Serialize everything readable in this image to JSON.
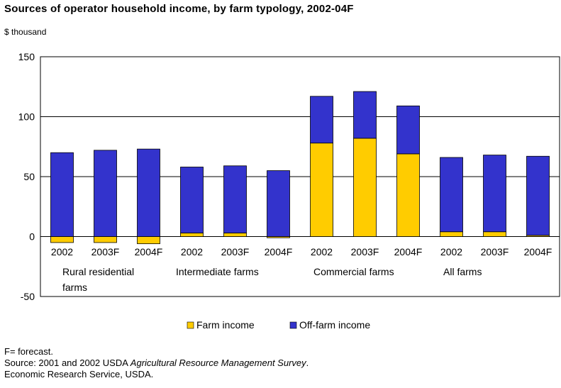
{
  "chart_data": {
    "type": "bar",
    "stacked": true,
    "title": "Sources of operator household income, by farm typology, 2002-04F",
    "ylabel": "$ thousand",
    "ylim": [
      -50,
      150
    ],
    "yticks": [
      -50,
      0,
      50,
      100,
      150
    ],
    "grid": "horizontal",
    "legend_position": "bottom",
    "groups": [
      {
        "label_lines": [
          "Rural residential",
          "farms"
        ],
        "categories": [
          "2002",
          "2003F",
          "2004F"
        ]
      },
      {
        "label_lines": [
          "Intermediate farms"
        ],
        "categories": [
          "2002",
          "2003F",
          "2004F"
        ]
      },
      {
        "label_lines": [
          "Commercial farms"
        ],
        "categories": [
          "2002",
          "2003F",
          "2004F"
        ]
      },
      {
        "label_lines": [
          "All farms"
        ],
        "categories": [
          "2002",
          "2003F",
          "2004F"
        ]
      }
    ],
    "categories": [
      "2002",
      "2003F",
      "2004F",
      "2002",
      "2003F",
      "2004F",
      "2002",
      "2003F",
      "2004F",
      "2002",
      "2003F",
      "2004F"
    ],
    "series": [
      {
        "name": "Farm income",
        "color": "#FFCC00",
        "values": [
          -5,
          -5,
          -6,
          3,
          3,
          -1,
          78,
          82,
          69,
          4,
          4,
          1
        ]
      },
      {
        "name": "Off-farm income",
        "color": "#3333CC",
        "values": [
          70,
          72,
          73,
          55,
          56,
          55,
          39,
          39,
          40,
          62,
          64,
          66
        ]
      }
    ]
  },
  "header": {
    "title": "Sources of operator household income, by farm typology, 2002-04F",
    "unit": "$ thousand"
  },
  "notes": {
    "forecast": "F= forecast.",
    "source_prefix": "Source: 2001 and 2002 USDA ",
    "source_title": "Agricultural Resource Management Survey",
    "source_suffix": ".",
    "agency": "Economic Research Service, USDA."
  }
}
